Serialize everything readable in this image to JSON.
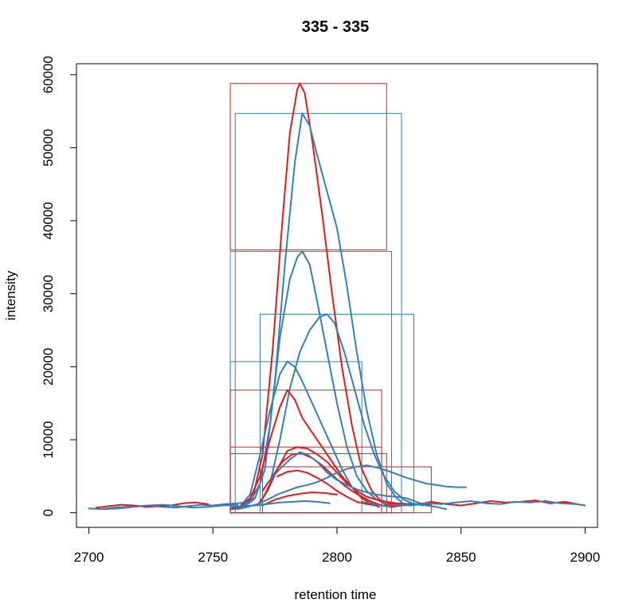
{
  "chart_data": {
    "type": "line",
    "title": "335 - 335",
    "xlabel": "retention time",
    "ylabel": "intensity",
    "xlim": [
      2695,
      2905
    ],
    "ylim": [
      -2000,
      61500
    ],
    "xticks": [
      2700,
      2750,
      2800,
      2850,
      2900
    ],
    "yticks": [
      0,
      10000,
      20000,
      30000,
      40000,
      50000,
      60000
    ],
    "grid": false,
    "legend": "none",
    "colors": {
      "red": "#e31a1c",
      "blue": "#377eb8"
    },
    "series": [
      {
        "color": "red",
        "x": [
          2758,
          2762,
          2766,
          2770,
          2774,
          2778,
          2781,
          2784,
          2785,
          2787,
          2790,
          2794,
          2798,
          2802,
          2806,
          2810,
          2814,
          2818,
          2820
        ],
        "y": [
          500,
          900,
          2000,
          8000,
          22000,
          40000,
          52000,
          58000,
          58800,
          57500,
          51000,
          41000,
          30000,
          20000,
          12000,
          6000,
          3000,
          1500,
          1000
        ]
      },
      {
        "color": "blue",
        "x": [
          2759,
          2763,
          2767,
          2771,
          2775,
          2779,
          2783,
          2786,
          2789,
          2792,
          2796,
          2800,
          2804,
          2808,
          2812,
          2816,
          2820,
          2824,
          2826
        ],
        "y": [
          500,
          900,
          2000,
          6000,
          18000,
          34000,
          48000,
          54700,
          53000,
          49000,
          44000,
          39000,
          31000,
          22000,
          14000,
          8000,
          4000,
          2000,
          1500
        ]
      },
      {
        "color": "blue",
        "x": [
          2757,
          2761,
          2765,
          2769,
          2773,
          2777,
          2781,
          2784,
          2786,
          2789,
          2792,
          2796,
          2800,
          2804,
          2808,
          2812,
          2816,
          2820,
          2822
        ],
        "y": [
          500,
          800,
          1500,
          4000,
          12000,
          24000,
          32000,
          35000,
          35800,
          34000,
          29000,
          22000,
          15000,
          9000,
          5000,
          3000,
          1800,
          1200,
          1000
        ]
      },
      {
        "color": "blue",
        "x": [
          2769,
          2773,
          2777,
          2781,
          2785,
          2789,
          2793,
          2796,
          2799,
          2803,
          2807,
          2811,
          2815,
          2819,
          2823,
          2827,
          2831
        ],
        "y": [
          1200,
          4000,
          10000,
          17000,
          22000,
          25000,
          26800,
          27200,
          26000,
          22000,
          17000,
          12000,
          8000,
          5000,
          3000,
          1800,
          1200
        ]
      },
      {
        "color": "blue",
        "x": [
          2757,
          2761,
          2765,
          2769,
          2773,
          2777,
          2780,
          2783,
          2786,
          2790,
          2794,
          2798,
          2802,
          2806,
          2810
        ],
        "y": [
          500,
          900,
          2500,
          8000,
          14000,
          19000,
          20700,
          20000,
          18000,
          15000,
          12000,
          9000,
          6000,
          3500,
          2000
        ]
      },
      {
        "color": "red",
        "x": [
          2757,
          2761,
          2765,
          2769,
          2773,
          2777,
          2780,
          2783,
          2786,
          2790,
          2794,
          2798,
          2802,
          2806,
          2810,
          2814,
          2817
        ],
        "y": [
          500,
          900,
          2000,
          5000,
          10000,
          14500,
          16800,
          15500,
          13000,
          11000,
          9000,
          7000,
          5000,
          3500,
          2000,
          1200,
          800
        ]
      },
      {
        "color": "red",
        "x": [
          2768,
          2772,
          2776,
          2780,
          2784,
          2788,
          2792,
          2796,
          2800,
          2804,
          2808,
          2812,
          2816,
          2820,
          2824,
          2828,
          2832,
          2836,
          2838
        ],
        "y": [
          1000,
          3000,
          6000,
          8500,
          9000,
          8800,
          8000,
          7000,
          5500,
          4000,
          3000,
          2200,
          1800,
          1500,
          1300,
          1200,
          1200,
          1100,
          1000
        ]
      },
      {
        "color": "red",
        "x": [
          2770,
          2774,
          2778,
          2782,
          2786,
          2790,
          2794,
          2798,
          2802,
          2806,
          2810,
          2814,
          2818
        ],
        "y": [
          3000,
          5000,
          7000,
          8000,
          8100,
          7500,
          6500,
          5200,
          4000,
          3000,
          2200,
          1500,
          1000
        ]
      },
      {
        "color": "blue",
        "x": [
          2773,
          2777,
          2781,
          2785,
          2788,
          2792,
          2796,
          2800,
          2804,
          2808,
          2812,
          2816,
          2820,
          2824,
          2828,
          2832,
          2836,
          2840,
          2844
        ],
        "y": [
          4500,
          6000,
          7300,
          8300,
          8000,
          7000,
          5500,
          4500,
          3800,
          3200,
          2800,
          2500,
          2300,
          2200,
          2000,
          1500,
          1000,
          800,
          500
        ]
      },
      {
        "color": "blue",
        "x": [
          2760,
          2764,
          2768,
          2772,
          2776,
          2780,
          2784,
          2788,
          2792,
          2796,
          2800,
          2804,
          2808,
          2812,
          2816,
          2820,
          2824,
          2828,
          2832,
          2836,
          2840,
          2844,
          2848,
          2852
        ],
        "y": [
          500,
          800,
          1200,
          1800,
          2500,
          3000,
          3500,
          3800,
          4200,
          4800,
          5500,
          6000,
          6300,
          6500,
          6200,
          5800,
          5300,
          4800,
          4400,
          4000,
          3800,
          3600,
          3500,
          3500
        ]
      },
      {
        "color": "red",
        "x": [
          2776,
          2780,
          2784,
          2788,
          2792,
          2796,
          2800,
          2804,
          2808,
          2812,
          2816
        ],
        "y": [
          5000,
          5600,
          5800,
          5500,
          4800,
          4000,
          3000,
          2200,
          1500,
          1200,
          1000
        ]
      },
      {
        "color": "red",
        "x": [
          2770,
          2775,
          2780,
          2785,
          2790,
          2795,
          2800
        ],
        "y": [
          1000,
          1800,
          2300,
          2600,
          2800,
          2700,
          2500
        ]
      },
      {
        "color": "blue",
        "x": [
          2757,
          2762,
          2767,
          2772,
          2777,
          2782,
          2787,
          2792,
          2797
        ],
        "y": [
          800,
          900,
          1000,
          1200,
          1400,
          1500,
          1600,
          1500,
          1300
        ]
      },
      {
        "color": "blue",
        "x": [
          2700,
          2705,
          2710,
          2715,
          2720,
          2725,
          2730,
          2735,
          2740,
          2745,
          2750,
          2755,
          2760,
          2765
        ],
        "y": [
          600,
          500,
          700,
          800,
          900,
          1000,
          800,
          700,
          900,
          1100,
          1000,
          1200,
          1300,
          1500
        ]
      },
      {
        "color": "red",
        "x": [
          2703,
          2708,
          2713,
          2718,
          2723,
          2728,
          2733,
          2738,
          2743,
          2748
        ],
        "y": [
          700,
          900,
          1100,
          1000,
          800,
          900,
          1000,
          1300,
          1400,
          1200
        ]
      },
      {
        "color": "blue",
        "x": [
          2706,
          2712,
          2718,
          2724,
          2730,
          2736,
          2742,
          2748,
          2754,
          2760
        ],
        "y": [
          500,
          600,
          800,
          1000,
          1100,
          900,
          700,
          800,
          1000,
          1100
        ]
      },
      {
        "color": "red",
        "x": [
          2820,
          2826,
          2832,
          2838,
          2844,
          2850,
          2856,
          2862,
          2868,
          2874,
          2880,
          2886,
          2892,
          2898
        ],
        "y": [
          1200,
          1300,
          1100,
          1500,
          1200,
          1000,
          1300,
          1600,
          1400,
          1500,
          1700,
          1300,
          1500,
          1100
        ]
      },
      {
        "color": "blue",
        "x": [
          2824,
          2830,
          2836,
          2842,
          2848,
          2854,
          2860,
          2866,
          2872,
          2878,
          2884,
          2890,
          2896,
          2900
        ],
        "y": [
          1100,
          1000,
          1300,
          1200,
          1400,
          1600,
          1300,
          1200,
          1500,
          1400,
          1600,
          1300,
          1200,
          1000
        ]
      },
      {
        "color": "red",
        "x": [
          2814,
          2818,
          2822,
          2826,
          2830
        ],
        "y": [
          1400,
          1000,
          800,
          1000,
          1300
        ]
      },
      {
        "color": "blue",
        "x": [
          2810,
          2815,
          2820,
          2825,
          2830,
          2835
        ],
        "y": [
          1500,
          1200,
          900,
          1100,
          1300,
          1000
        ]
      }
    ],
    "boxes": [
      {
        "color": "red",
        "x0": 2757,
        "x1": 2820,
        "y0": 36000,
        "y1": 58800
      },
      {
        "color": "blue",
        "x0": 2759,
        "x1": 2826,
        "y0": 0,
        "y1": 54700
      },
      {
        "color": "blue",
        "x0": 2757,
        "x1": 2822,
        "y0": 0,
        "y1": 35800
      },
      {
        "color": "blue",
        "x0": 2769,
        "x1": 2831,
        "y0": 0,
        "y1": 27200
      },
      {
        "color": "blue",
        "x0": 2757,
        "x1": 2810,
        "y0": 0,
        "y1": 20700
      },
      {
        "color": "red",
        "x0": 2757,
        "x1": 2818,
        "y0": 0,
        "y1": 16800
      },
      {
        "color": "red",
        "x0": 2757,
        "x1": 2818,
        "y0": 0,
        "y1": 9000
      },
      {
        "color": "red",
        "x0": 2757,
        "x1": 2820,
        "y0": 0,
        "y1": 8100
      },
      {
        "color": "red",
        "x0": 2770,
        "x1": 2838,
        "y0": 0,
        "y1": 6300
      }
    ]
  }
}
